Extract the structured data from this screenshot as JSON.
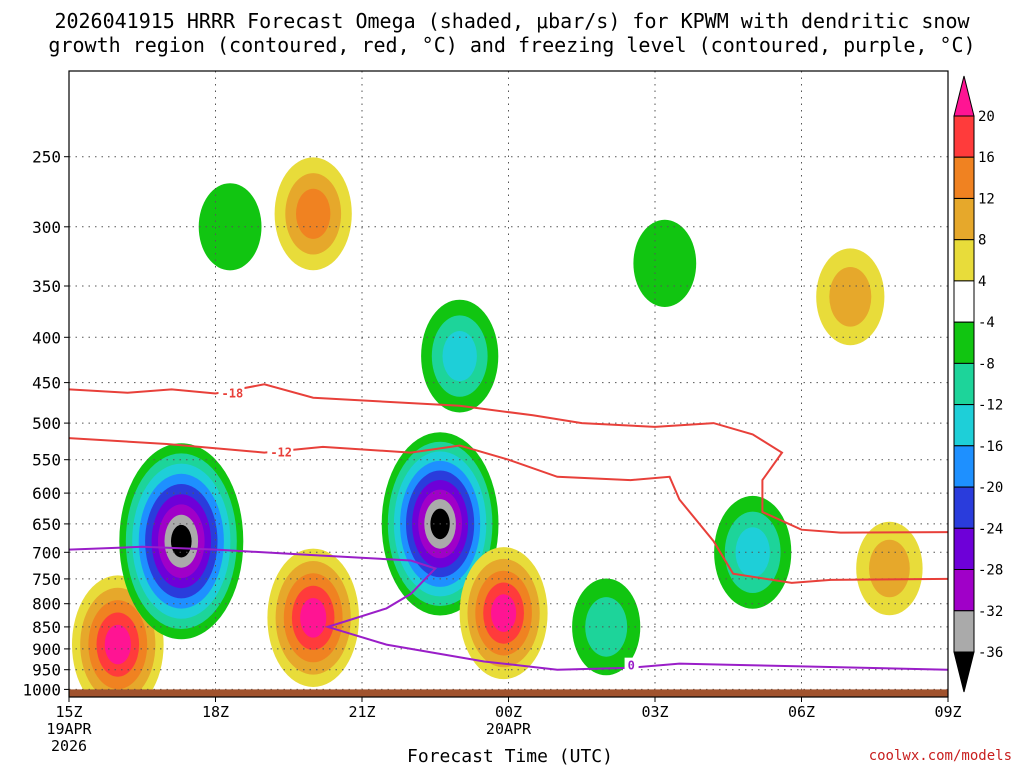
{
  "chart_data": {
    "type": "heatmap",
    "title_line1": "2026041915 HRRR Forecast Omega (shaded, μbar/s) for KPWM with dendritic snow",
    "title_line2": "growth region (contoured, red, °C) and freezing level (contoured, purple, °C)",
    "xlabel": "Forecast Time (UTC)",
    "x_ticks": [
      {
        "hour": 0,
        "label": "15Z",
        "sub1": "19APR",
        "sub2": "2026"
      },
      {
        "hour": 3,
        "label": "18Z",
        "sub1": "",
        "sub2": ""
      },
      {
        "hour": 6,
        "label": "21Z",
        "sub1": "",
        "sub2": ""
      },
      {
        "hour": 9,
        "label": "00Z",
        "sub1": "20APR",
        "sub2": ""
      },
      {
        "hour": 12,
        "label": "03Z",
        "sub1": "",
        "sub2": ""
      },
      {
        "hour": 15,
        "label": "06Z",
        "sub1": "",
        "sub2": ""
      },
      {
        "hour": 18,
        "label": "09Z",
        "sub1": "",
        "sub2": ""
      }
    ],
    "xlim_hours": [
      0,
      18
    ],
    "y_pressure_ticks": [
      250,
      300,
      350,
      400,
      450,
      500,
      550,
      600,
      650,
      700,
      750,
      800,
      850,
      900,
      950,
      1000
    ],
    "ylim_hPa": [
      200,
      1020
    ],
    "colorbar": {
      "labels": [
        "20",
        "16",
        "12",
        "8",
        "4",
        "-4",
        "-8",
        "-12",
        "-16",
        "-20",
        "-24",
        "-28",
        "-32",
        "-36"
      ],
      "colors": [
        "#ff1493",
        "#ff3b3b",
        "#f08221",
        "#e6a82b",
        "#e8dc3a",
        "#ffffff",
        "#11c511",
        "#1dd49a",
        "#1ecfd8",
        "#1e90ff",
        "#2a3cdc",
        "#6e00d8",
        "#a000c8",
        "#aaaaaa",
        "#000000"
      ]
    },
    "omega_features": [
      {
        "hour": 1.0,
        "hPa": 890,
        "value": 22
      },
      {
        "hour": 2.3,
        "hPa": 680,
        "value": -40
      },
      {
        "hour": 5.0,
        "hPa": 830,
        "value": 22
      },
      {
        "hour": 7.6,
        "hPa": 650,
        "value": -36
      },
      {
        "hour": 8.9,
        "hPa": 820,
        "value": 20
      },
      {
        "hour": 5.0,
        "hPa": 290,
        "value": 14
      },
      {
        "hour": 3.3,
        "hPa": 300,
        "value": -6
      },
      {
        "hour": 8.0,
        "hPa": 420,
        "value": -14
      },
      {
        "hour": 12.2,
        "hPa": 330,
        "value": -6
      },
      {
        "hour": 14.0,
        "hPa": 700,
        "value": -14
      },
      {
        "hour": 16.0,
        "hPa": 360,
        "value": 9
      },
      {
        "hour": 16.8,
        "hPa": 730,
        "value": 8
      },
      {
        "hour": 11.0,
        "hPa": 850,
        "value": -9
      }
    ],
    "dgz_contours": [
      {
        "label": "-18",
        "points": [
          [
            0,
            458
          ],
          [
            1.2,
            462
          ],
          [
            2.1,
            458
          ],
          [
            3,
            463
          ],
          [
            4,
            452
          ],
          [
            5,
            468
          ],
          [
            8,
            478
          ],
          [
            9.5,
            490
          ],
          [
            10.5,
            500
          ],
          [
            12,
            505
          ],
          [
            13.2,
            500
          ],
          [
            14,
            515
          ],
          [
            14.6,
            540
          ],
          [
            14.2,
            580
          ],
          [
            14.2,
            630
          ],
          [
            15,
            660
          ],
          [
            15.8,
            665
          ],
          [
            18,
            664
          ]
        ]
      },
      {
        "label": "-12",
        "points": [
          [
            0,
            520
          ],
          [
            2,
            528
          ],
          [
            3.2,
            535
          ],
          [
            4,
            540
          ],
          [
            5.2,
            532
          ],
          [
            7,
            540
          ],
          [
            8,
            530
          ],
          [
            9,
            550
          ],
          [
            10,
            575
          ],
          [
            11.5,
            580
          ],
          [
            12.3,
            575
          ],
          [
            12.5,
            610
          ],
          [
            13.2,
            680
          ],
          [
            13.6,
            740
          ],
          [
            14.8,
            758
          ],
          [
            15.6,
            752
          ],
          [
            18,
            750
          ]
        ]
      }
    ],
    "freezing_level_contour": {
      "label": "0",
      "points": [
        [
          0,
          695
        ],
        [
          1.5,
          690
        ],
        [
          3,
          695
        ],
        [
          5,
          705
        ],
        [
          7,
          715
        ],
        [
          7.5,
          730
        ],
        [
          7,
          780
        ],
        [
          6.5,
          810
        ],
        [
          5.3,
          850
        ],
        [
          6.5,
          890
        ],
        [
          8.5,
          930
        ],
        [
          10,
          950
        ],
        [
          11.5,
          945
        ],
        [
          12.5,
          935
        ],
        [
          13.5,
          938
        ],
        [
          15,
          942
        ],
        [
          18,
          950
        ]
      ]
    },
    "ground_pressure_hPa": 1000,
    "credit": "coolwx.com/models"
  }
}
